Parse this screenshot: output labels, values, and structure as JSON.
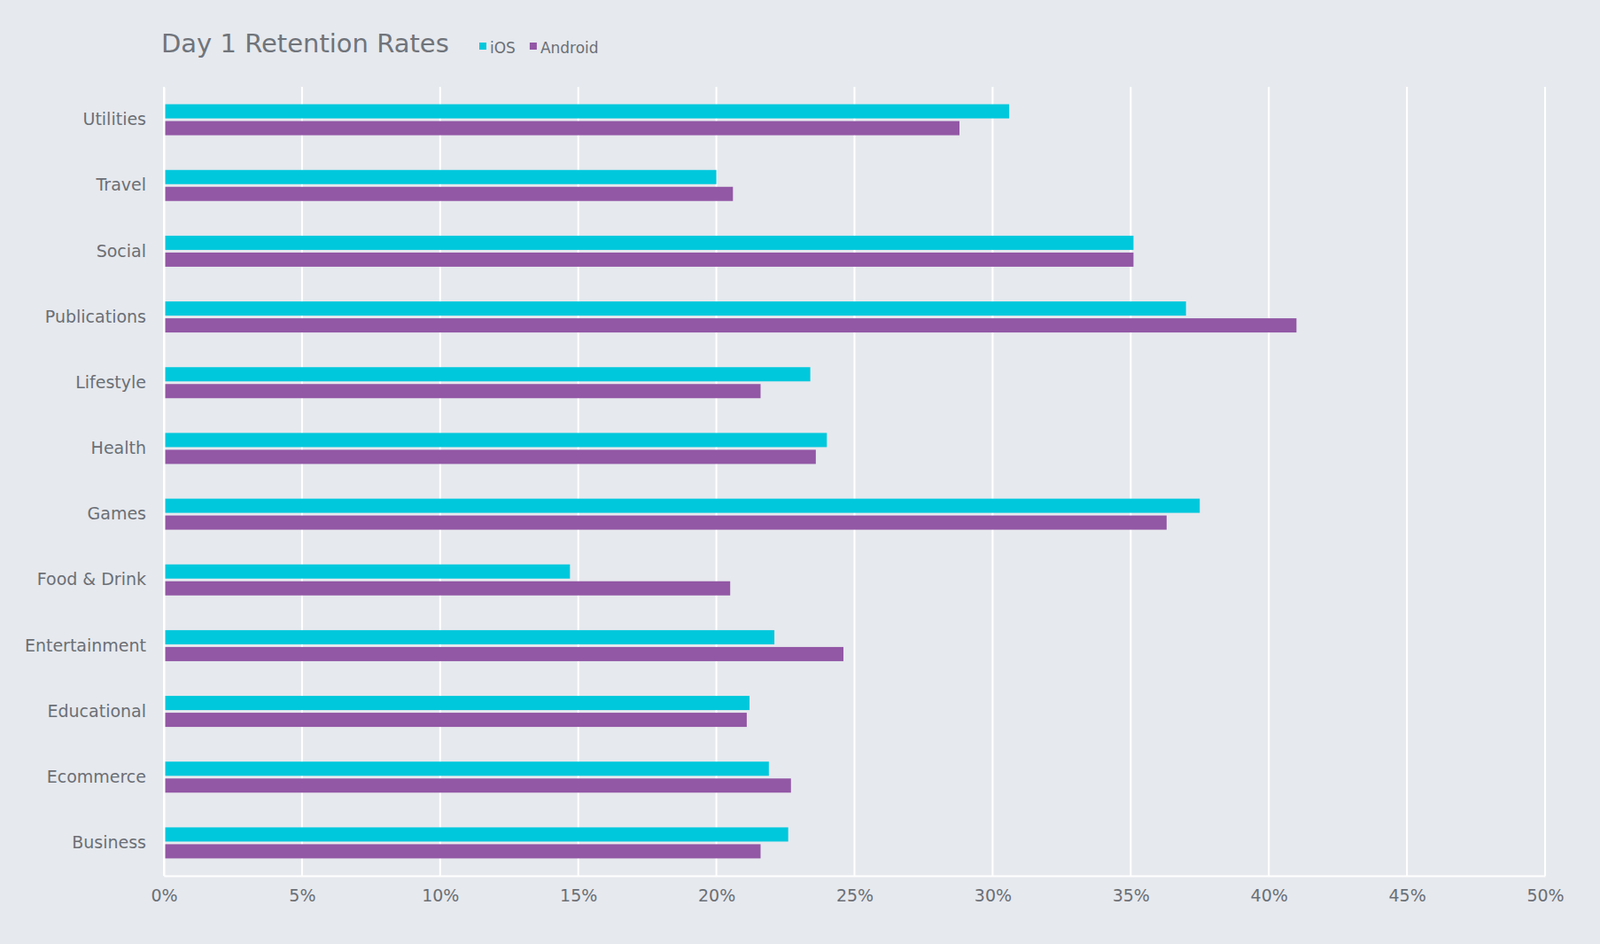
{
  "chart_data": {
    "type": "bar",
    "title": "Day 1 Retention Rates",
    "orientation": "horizontal",
    "grid": true,
    "legend": "top",
    "categories": [
      "Utilities",
      "Travel",
      "Social",
      "Publications",
      "Lifestyle",
      "Health",
      "Games",
      "Food & Drink",
      "Entertainment",
      "Educational",
      "Ecommerce",
      "Business"
    ],
    "series": [
      {
        "name": "iOS",
        "color": "#00c8dc",
        "values": [
          30.6,
          20.0,
          35.1,
          37.0,
          23.4,
          24.0,
          37.5,
          14.7,
          22.1,
          21.2,
          21.9,
          22.6
        ]
      },
      {
        "name": "Android",
        "color": "#9257a5",
        "values": [
          28.8,
          20.6,
          35.1,
          41.0,
          21.6,
          23.6,
          36.3,
          20.5,
          24.6,
          21.1,
          22.7,
          21.6
        ]
      }
    ],
    "xlim": [
      0,
      50
    ],
    "xticks": [
      {
        "value": 0,
        "label": "0%"
      },
      {
        "value": 5,
        "label": "5%"
      },
      {
        "value": 10,
        "label": "10%"
      },
      {
        "value": 15,
        "label": "15%"
      },
      {
        "value": 20,
        "label": "20%"
      },
      {
        "value": 25,
        "label": "25%"
      },
      {
        "value": 30,
        "label": "30%"
      },
      {
        "value": 35,
        "label": "35%"
      },
      {
        "value": 40,
        "label": "40%"
      },
      {
        "value": 45,
        "label": "45%"
      },
      {
        "value": 50,
        "label": "50%"
      }
    ]
  }
}
